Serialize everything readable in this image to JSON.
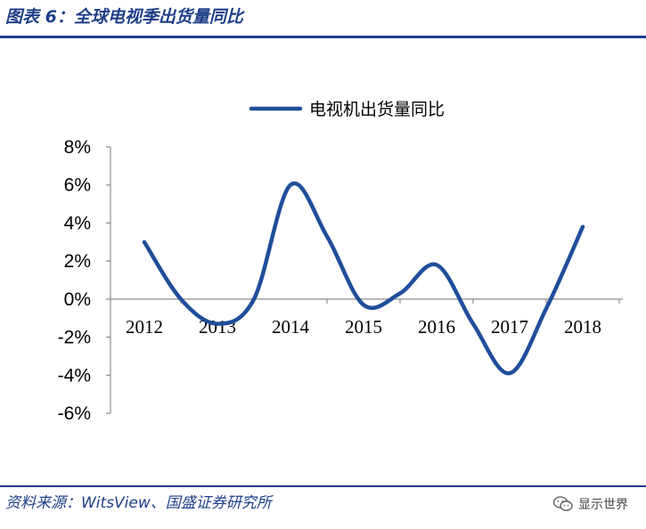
{
  "header": {
    "title": "图表 6：全球电视季出货量同比"
  },
  "footer": {
    "source": "资料来源：WitsView、国盛证券研究所",
    "watermark": "显示世界"
  },
  "colors": {
    "accent": "#1f3f88",
    "line": "#1f4e9a"
  },
  "chart_data": {
    "type": "line",
    "title": "",
    "xlabel": "",
    "ylabel": "",
    "categories": [
      "2012",
      "2013",
      "2014",
      "2015",
      "2016",
      "2017",
      "2018"
    ],
    "y_ticks": [
      "8%",
      "6%",
      "4%",
      "2%",
      "0%",
      "-2%",
      "-4%",
      "-6%"
    ],
    "ylim": [
      -6,
      8
    ],
    "legend_position": "top",
    "series": [
      {
        "name": "电视机出货量同比",
        "x": [
          2012.0,
          2012.5,
          2013.0,
          2013.5,
          2014.0,
          2014.5,
          2015.0,
          2015.5,
          2016.0,
          2016.5,
          2017.0,
          2017.5,
          2018.0
        ],
        "values": [
          3.0,
          0.0,
          -1.3,
          0.0,
          6.0,
          3.3,
          -0.3,
          0.3,
          1.8,
          -1.3,
          -3.9,
          -0.5,
          3.8
        ]
      }
    ]
  }
}
